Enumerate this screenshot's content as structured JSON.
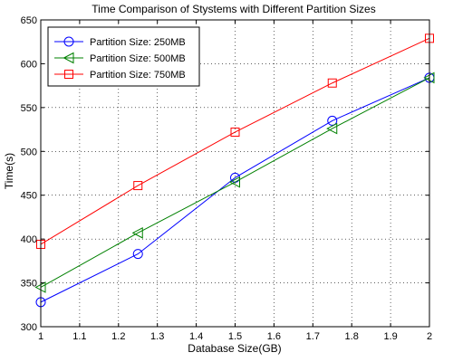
{
  "chart_data": {
    "type": "line",
    "title": "Time Comparison of Stystems with Different Partition Sizes",
    "xlabel": "Database Size(GB)",
    "ylabel": "Time(s)",
    "xlim": [
      1,
      2
    ],
    "ylim": [
      300,
      650
    ],
    "xticks": [
      "1",
      "1.1",
      "1.2",
      "1.3",
      "1.4",
      "1.5",
      "1.6",
      "1.7",
      "1.8",
      "1.9",
      "2"
    ],
    "yticks": [
      "300",
      "350",
      "400",
      "450",
      "500",
      "550",
      "600",
      "650"
    ],
    "grid": "dotted",
    "legend_position": "top-left",
    "x": [
      1,
      1.25,
      1.5,
      1.75,
      2
    ],
    "series": [
      {
        "name": "Partition Size: 250MB",
        "color": "#0000ff",
        "marker": "circle",
        "values": [
          328,
          383,
          470,
          535,
          584
        ]
      },
      {
        "name": "Partition Size: 500MB",
        "color": "#008000",
        "marker": "triangle-left",
        "values": [
          345,
          407,
          465,
          526,
          584
        ]
      },
      {
        "name": "Partition Size: 750MB",
        "color": "#ff0000",
        "marker": "square",
        "values": [
          394,
          461,
          522,
          578,
          629
        ]
      }
    ]
  }
}
